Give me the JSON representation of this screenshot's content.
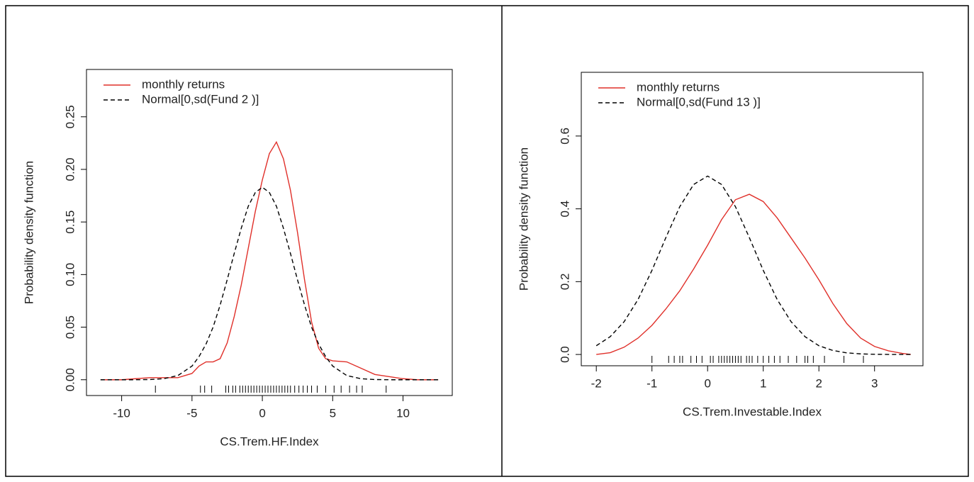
{
  "chart_data": [
    {
      "type": "line",
      "xlabel": "CS.Trem.HF.Index",
      "ylabel": "Probability density function",
      "x": [
        -11.5,
        -10,
        -9,
        -8,
        -7,
        -6,
        -5,
        -4.5,
        -4,
        -3.5,
        -3,
        -2.5,
        -2,
        -1.5,
        -1,
        -0.5,
        0,
        0.5,
        1,
        1.5,
        2,
        2.5,
        3,
        3.5,
        4,
        4.5,
        5,
        6,
        7,
        8,
        9,
        10,
        11,
        12.5
      ],
      "series": [
        {
          "name": "monthly returns",
          "color": "#e0302a",
          "dashed": false,
          "values": [
            0,
            0,
            0.001,
            0.002,
            0.002,
            0.002,
            0.006,
            0.013,
            0.017,
            0.017,
            0.02,
            0.035,
            0.06,
            0.09,
            0.125,
            0.16,
            0.19,
            0.215,
            0.226,
            0.21,
            0.18,
            0.14,
            0.095,
            0.055,
            0.03,
            0.02,
            0.018,
            0.017,
            0.011,
            0.005,
            0.003,
            0.001,
            0,
            0
          ]
        },
        {
          "name": "Normal[0,sd(Fund 2 )]",
          "color": "#000000",
          "dashed": true,
          "values": [
            0,
            0,
            0,
            0.0002,
            0.001,
            0.004,
            0.013,
            0.022,
            0.034,
            0.05,
            0.071,
            0.095,
            0.12,
            0.144,
            0.165,
            0.178,
            0.183,
            0.178,
            0.165,
            0.144,
            0.12,
            0.095,
            0.071,
            0.05,
            0.034,
            0.022,
            0.013,
            0.004,
            0.001,
            0.0002,
            0,
            0,
            0,
            0
          ]
        }
      ],
      "rug": [
        -7.6,
        -4.4,
        -4.1,
        -3.6,
        -2.6,
        -2.4,
        -2.1,
        -1.9,
        -1.6,
        -1.4,
        -1.2,
        -1.0,
        -0.8,
        -0.6,
        -0.4,
        -0.2,
        0,
        0.2,
        0.4,
        0.6,
        0.8,
        1.0,
        1.2,
        1.4,
        1.6,
        1.8,
        2.0,
        2.3,
        2.6,
        2.9,
        3.2,
        3.5,
        3.9,
        4.5,
        5.1,
        5.6,
        6.2,
        6.7,
        7.1,
        8.8
      ],
      "xlim": [
        -12.5,
        13.5
      ],
      "ylim": [
        -0.015,
        0.295
      ],
      "xticks": [
        -10,
        -5,
        0,
        5,
        10
      ],
      "yticks": [
        {
          "value": 0,
          "label": "0.00"
        },
        {
          "value": 0.05,
          "label": "0.05"
        },
        {
          "value": 0.1,
          "label": "0.10"
        },
        {
          "value": 0.15,
          "label": "0.15"
        },
        {
          "value": 0.2,
          "label": "0.20"
        },
        {
          "value": 0.25,
          "label": "0.25"
        }
      ],
      "legend": "top-left"
    },
    {
      "type": "line",
      "xlabel": "CS.Trem.Investable.Index",
      "ylabel": "Probability density function",
      "x": [
        -2,
        -1.75,
        -1.5,
        -1.25,
        -1,
        -0.75,
        -0.5,
        -0.25,
        0,
        0.25,
        0.5,
        0.75,
        1,
        1.25,
        1.5,
        1.75,
        2,
        2.25,
        2.5,
        2.75,
        3,
        3.25,
        3.5,
        3.65
      ],
      "series": [
        {
          "name": "monthly returns",
          "color": "#e0302a",
          "dashed": false,
          "values": [
            0,
            0.005,
            0.02,
            0.045,
            0.08,
            0.125,
            0.175,
            0.235,
            0.3,
            0.37,
            0.425,
            0.44,
            0.42,
            0.375,
            0.32,
            0.265,
            0.205,
            0.14,
            0.085,
            0.045,
            0.022,
            0.01,
            0.003,
            0
          ]
        },
        {
          "name": "Normal[0,sd(Fund 13 )]",
          "color": "#000000",
          "dashed": true,
          "values": [
            0.024,
            0.049,
            0.09,
            0.151,
            0.231,
            0.321,
            0.406,
            0.467,
            0.49,
            0.467,
            0.406,
            0.321,
            0.231,
            0.151,
            0.09,
            0.049,
            0.024,
            0.011,
            0.0044,
            0.0016,
            0.0005,
            0.0001,
            0,
            0
          ]
        }
      ],
      "rug": [
        -1.0,
        -0.7,
        -0.6,
        -0.5,
        -0.45,
        -0.3,
        -0.2,
        -0.1,
        0.05,
        0.1,
        0.2,
        0.25,
        0.3,
        0.35,
        0.4,
        0.45,
        0.5,
        0.55,
        0.6,
        0.7,
        0.75,
        0.8,
        0.9,
        1.0,
        1.1,
        1.2,
        1.3,
        1.45,
        1.6,
        1.75,
        1.8,
        1.9,
        2.1,
        2.45,
        2.8
      ],
      "xlim": [
        -2.27,
        3.87
      ],
      "ylim": [
        -0.031,
        0.775
      ],
      "xticks": [
        -2,
        -1,
        0,
        1,
        2,
        3
      ],
      "yticks": [
        {
          "value": 0,
          "label": "0.0"
        },
        {
          "value": 0.2,
          "label": "0.2"
        },
        {
          "value": 0.4,
          "label": "0.4"
        },
        {
          "value": 0.6,
          "label": "0.6"
        }
      ],
      "legend": "top-left"
    }
  ]
}
